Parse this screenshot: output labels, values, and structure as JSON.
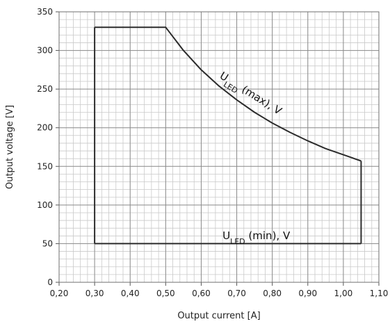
{
  "chart_data": {
    "type": "line",
    "xlabel": "Output current [A]",
    "ylabel": "Output voltage [V]",
    "xlim": [
      0.2,
      1.1
    ],
    "ylim": [
      0,
      350
    ],
    "x_ticks": [
      "0,20",
      "0,30",
      "0,40",
      "0,50",
      "0,60",
      "0,70",
      "0,80",
      "0,90",
      "1,00",
      "1,10"
    ],
    "y_ticks": [
      "0",
      "50",
      "100",
      "150",
      "200",
      "250",
      "300",
      "350"
    ],
    "minor_grid": {
      "x_step": 0.02,
      "y_step": 10
    },
    "grid": true,
    "series": [
      {
        "name": "ULED (max), V",
        "label_main": "U",
        "label_sub": "LED",
        "label_rest": " (max), V",
        "x": [
          0.3,
          0.5,
          0.55,
          0.6,
          0.65,
          0.7,
          0.75,
          0.8,
          0.85,
          0.9,
          0.95,
          1.0,
          1.05
        ],
        "y": [
          330,
          330,
          300,
          275,
          254,
          236,
          220,
          206,
          194,
          183,
          173,
          165,
          157
        ]
      },
      {
        "name": "ULED (min), V",
        "label_main": "U",
        "label_sub": "LED",
        "label_rest": " (min), V",
        "x": [
          0.3,
          1.05
        ],
        "y": [
          50,
          50
        ]
      }
    ],
    "boundaries": [
      {
        "x": [
          0.3,
          0.3
        ],
        "y": [
          50,
          330
        ]
      },
      {
        "x": [
          1.05,
          1.05
        ],
        "y": [
          50,
          157
        ]
      }
    ]
  }
}
